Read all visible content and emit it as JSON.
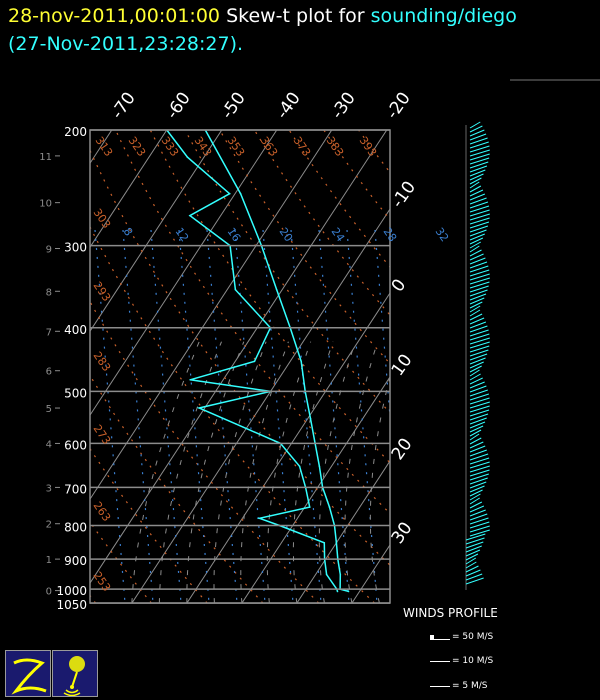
{
  "title": {
    "datetime": "28-nov-2011,00:01:00",
    "prefix": "Skew-t plot for",
    "source": "sounding/diego",
    "obs_time": "(27-Nov-2011,23:28:27)."
  },
  "colors": {
    "datetime": "#ffff33",
    "source": "#33ffff",
    "profiles": "#33ffff",
    "dry_adiabats": "#c8602a",
    "mixing_lines": "#3a7fd0",
    "grid": "#8c8c8c",
    "logo_bg": "#1a1a6e",
    "logo_fg": "#ffff00"
  },
  "chart_data": {
    "type": "line",
    "subtype": "skew-t log-p",
    "y_axis": {
      "label": "pressure",
      "scale": "log",
      "range": [
        1050,
        200
      ],
      "ticks": [
        "200",
        "300",
        "400",
        "500",
        "600",
        "700",
        "800",
        "900",
        "1000",
        "1050"
      ]
    },
    "height_axis": {
      "ticks": [
        "11",
        "10",
        "9",
        "8",
        "7",
        "6",
        "5",
        "4",
        "3",
        "2",
        "1",
        "0"
      ],
      "pressures": [
        219,
        258,
        303,
        352,
        405,
        465,
        530,
        600,
        700,
        795,
        900,
        1005
      ]
    },
    "isotherm_labels": [
      "-70",
      "-60",
      "-50",
      "-40",
      "-30",
      "-20",
      "-10",
      "0",
      "10",
      "20",
      "30"
    ],
    "dry_adiabat_labels": [
      "313",
      "323",
      "333",
      "343",
      "353",
      "363",
      "373",
      "383",
      "393",
      "303",
      "293",
      "283",
      "273",
      "263",
      "253"
    ],
    "mixing_labels": [
      "8",
      "12",
      "16",
      "20",
      "24",
      "28",
      "32"
    ],
    "series": [
      {
        "kind": "temperature",
        "pressure": [
          200,
          250,
          300,
          350,
          400,
          450,
          500,
          550,
          600,
          650,
          700,
          750,
          800,
          850,
          900,
          950,
          1000,
          1008
        ],
        "temperature": [
          -53,
          -39,
          -29,
          -21,
          -14,
          -8,
          -3.7,
          0.5,
          4.3,
          7.8,
          10.9,
          14.5,
          17.6,
          20,
          22.2,
          24.5,
          26.2,
          28
        ]
      },
      {
        "kind": "dewpoint",
        "pressure": [
          200,
          220,
          250,
          270,
          300,
          350,
          400,
          450,
          480,
          500,
          530,
          560,
          600,
          650,
          700,
          750,
          780,
          800,
          850,
          900,
          950,
          1000,
          1008
        ],
        "temperature": [
          -60,
          -53,
          -41,
          -45.6,
          -34.7,
          -28.5,
          -17.6,
          -16.5,
          -26,
          -10,
          -21,
          -12.5,
          -2,
          4.2,
          7.8,
          10.9,
          3.1,
          7.6,
          17.8,
          19.8,
          22,
          25.6,
          26
        ]
      }
    ],
    "grid": true
  },
  "winds": {
    "title": "WINDS PROFILE",
    "legend": [
      "= 50 M/S",
      "= 10 M/S",
      "= 5 M/S"
    ]
  },
  "logos": [
    "Z",
    "balloon"
  ]
}
